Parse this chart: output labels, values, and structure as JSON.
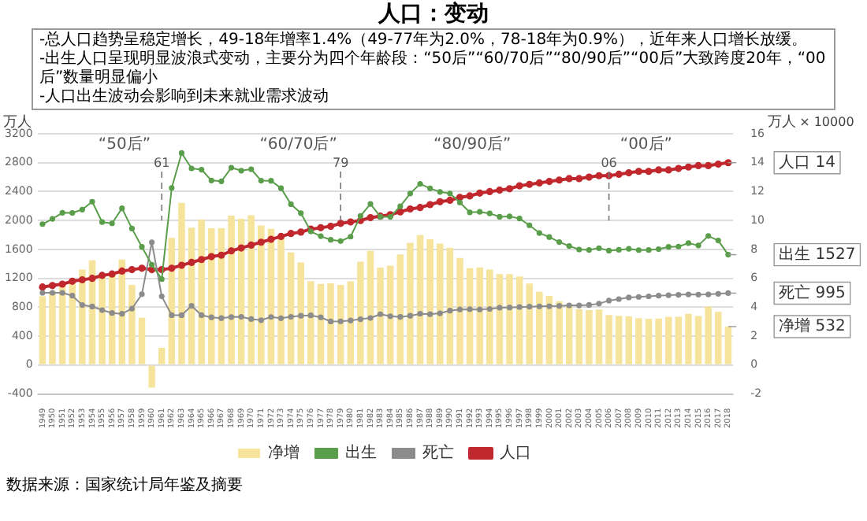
{
  "chart_data": {
    "type": "bar",
    "title": "人口：变动",
    "subtitle": "-总人口趋势呈稳定增长，49-18年增率1.4%（49-77年为2.0%，78-18年为0.9%），近年来人口增长放缓。\n-出生人口呈现明显波浪式变动，主要分为四个年龄段：“50后”“60/70后”“80/90后”“00后”大致跨度20年，“00后”数量明显偏小\n-人口出生波动会影响到未来就业需求波动",
    "ylabel": "万人",
    "y2label": "万人",
    "categories": [
      "1949",
      "1950",
      "1951",
      "1952",
      "1953",
      "1954",
      "1955",
      "1956",
      "1957",
      "1958",
      "1959",
      "1960",
      "1961",
      "1962",
      "1963",
      "1964",
      "1965",
      "1966",
      "1967",
      "1968",
      "1969",
      "1970",
      "1971",
      "1972",
      "1973",
      "1974",
      "1975",
      "1976",
      "1977",
      "1978",
      "1979",
      "1980",
      "1981",
      "1982",
      "1983",
      "1984",
      "1985",
      "1986",
      "1987",
      "1988",
      "1989",
      "1990",
      "1991",
      "1992",
      "1993",
      "1994",
      "1995",
      "1996",
      "1997",
      "1998",
      "1999",
      "2000",
      "2001",
      "2002",
      "2003",
      "2004",
      "2005",
      "2006",
      "2007",
      "2008",
      "2009",
      "2010",
      "2011",
      "2012",
      "2013",
      "2014",
      "2015",
      "2016",
      "2017",
      "2018"
    ],
    "series": [
      {
        "name": "净增",
        "color": "#f6e49c",
        "values": [
          950,
          1023,
          1107,
          1145,
          1321,
          1450,
          1218,
          1241,
          1459,
          1109,
          655,
          -311,
          239,
          1761,
          2244,
          1901,
          2014,
          1894,
          1893,
          2067,
          2023,
          2074,
          1930,
          1885,
          1799,
          1558,
          1420,
          1161,
          1123,
          1130,
          1110,
          1159,
          1430,
          1579,
          1349,
          1375,
          1530,
          1692,
          1799,
          1741,
          1680,
          1621,
          1481,
          1341,
          1351,
          1321,
          1258,
          1260,
          1226,
          1127,
          1015,
          957,
          884,
          821,
          774,
          761,
          768,
          692,
          681,
          673,
          648,
          641,
          644,
          669,
          668,
          710,
          680,
          809,
          737,
          532
        ],
        "value_labels": [
          null,
          null,
          null,
          null,
          null,
          null,
          null,
          null,
          null,
          null,
          null,
          null,
          null,
          null,
          null,
          null,
          null,
          null,
          null,
          null,
          null,
          null,
          null,
          null,
          null,
          null,
          null,
          null,
          null,
          null,
          null,
          null,
          null,
          null,
          null,
          null,
          null,
          null,
          null,
          null,
          null,
          null,
          null,
          null,
          null,
          null,
          null,
          null,
          null,
          null,
          null,
          null,
          null,
          null,
          null,
          null,
          null,
          null,
          null,
          null,
          null,
          null,
          null,
          null,
          null,
          null,
          null,
          null,
          null,
          "532"
        ]
      },
      {
        "name": "出生",
        "type": "line",
        "color": "#5a9e4b",
        "values": [
          1950,
          2023,
          2107,
          2105,
          2151,
          2260,
          1978,
          1961,
          2169,
          1889,
          1635,
          1389,
          1189,
          2451,
          2934,
          2721,
          2704,
          2554,
          2543,
          2731,
          2690,
          2710,
          2551,
          2550,
          2447,
          2226,
          2102,
          1849,
          1783,
          1733,
          1715,
          1776,
          2064,
          2230,
          2052,
          2050,
          2196,
          2374,
          2508,
          2445,
          2396,
          2374,
          2250,
          2113,
          2120,
          2098,
          2052,
          2057,
          2028,
          1934,
          1827,
          1771,
          1702,
          1647,
          1599,
          1593,
          1617,
          1584,
          1594,
          1608,
          1591,
          1592,
          1604,
          1635,
          1640,
          1687,
          1655,
          1786,
          1723,
          1527
        ],
        "value_labels": [
          null,
          null,
          null,
          null,
          null,
          null,
          null,
          null,
          null,
          null,
          null,
          null,
          null,
          null,
          null,
          null,
          null,
          null,
          null,
          null,
          null,
          null,
          null,
          null,
          null,
          null,
          null,
          null,
          null,
          null,
          null,
          null,
          null,
          null,
          null,
          null,
          null,
          null,
          null,
          null,
          null,
          null,
          null,
          null,
          null,
          null,
          null,
          null,
          null,
          null,
          null,
          null,
          null,
          null,
          null,
          null,
          null,
          null,
          null,
          null,
          null,
          null,
          null,
          null,
          null,
          null,
          null,
          null,
          null,
          "1527"
        ]
      },
      {
        "name": "死亡",
        "type": "line",
        "color": "#8c8c8c",
        "values": [
          1000,
          1000,
          1000,
          960,
          830,
          810,
          760,
          720,
          710,
          780,
          980,
          1700,
          950,
          690,
          690,
          820,
          690,
          660,
          650,
          664,
          667,
          636,
          621,
          665,
          648,
          668,
          682,
          688,
          660,
          603,
          605,
          617,
          634,
          651,
          703,
          675,
          666,
          682,
          709,
          704,
          716,
          753,
          769,
          772,
          769,
          777,
          794,
          797,
          802,
          807,
          812,
          814,
          818,
          826,
          825,
          832,
          849,
          892,
          913,
          935,
          943,
          951,
          960,
          966,
          972,
          977,
          975,
          977,
          986,
          995
        ],
        "value_labels": [
          null,
          null,
          null,
          null,
          null,
          null,
          null,
          null,
          null,
          null,
          null,
          null,
          null,
          null,
          null,
          null,
          null,
          null,
          null,
          null,
          null,
          null,
          null,
          null,
          null,
          null,
          null,
          null,
          null,
          null,
          null,
          null,
          null,
          null,
          null,
          null,
          null,
          null,
          null,
          null,
          null,
          null,
          null,
          null,
          null,
          null,
          null,
          null,
          null,
          null,
          null,
          null,
          null,
          null,
          null,
          null,
          null,
          null,
          null,
          null,
          null,
          null,
          null,
          null,
          null,
          null,
          null,
          null,
          null,
          "995"
        ]
      },
      {
        "name": "人口",
        "type": "line",
        "axis": "y2",
        "color": "#c0282d",
        "values": [
          5.4,
          5.5,
          5.6,
          5.8,
          5.9,
          6.0,
          6.2,
          6.3,
          6.5,
          6.6,
          6.7,
          6.6,
          6.6,
          6.7,
          6.9,
          7.1,
          7.3,
          7.5,
          7.6,
          7.9,
          8.1,
          8.3,
          8.5,
          8.7,
          8.9,
          9.1,
          9.2,
          9.4,
          9.5,
          9.6,
          9.8,
          9.9,
          10.0,
          10.2,
          10.3,
          10.4,
          10.6,
          10.8,
          10.9,
          11.1,
          11.3,
          11.4,
          11.6,
          11.7,
          11.9,
          12.0,
          12.1,
          12.2,
          12.4,
          12.5,
          12.6,
          12.7,
          12.8,
          12.9,
          12.9,
          13.0,
          13.1,
          13.1,
          13.2,
          13.3,
          13.4,
          13.4,
          13.5,
          13.5,
          13.6,
          13.7,
          13.8,
          13.8,
          13.9,
          14.0
        ],
        "value_labels": [
          null,
          null,
          null,
          null,
          null,
          null,
          null,
          null,
          null,
          null,
          null,
          null,
          null,
          null,
          null,
          null,
          null,
          null,
          null,
          null,
          null,
          null,
          null,
          null,
          null,
          null,
          null,
          null,
          null,
          null,
          null,
          null,
          null,
          null,
          null,
          null,
          null,
          null,
          null,
          null,
          null,
          null,
          null,
          null,
          null,
          null,
          null,
          null,
          null,
          null,
          null,
          null,
          null,
          null,
          null,
          null,
          null,
          null,
          null,
          null,
          null,
          null,
          null,
          null,
          null,
          null,
          null,
          null,
          null,
          "14"
        ]
      }
    ],
    "ylim": [
      -400,
      3200
    ],
    "yticks": [
      -400,
      0,
      400,
      800,
      1200,
      1600,
      2000,
      2400,
      2800,
      3200
    ],
    "y2lim": [
      -2,
      16
    ],
    "y2ticks": [
      -2,
      0,
      2,
      4,
      6,
      8,
      10,
      12,
      14,
      16
    ],
    "ref_lines": [
      {
        "axis": "x",
        "value": "1961",
        "label": "61",
        "line_style": "dashed"
      },
      {
        "axis": "x",
        "value": "1979",
        "label": "79",
        "line_style": "dashed"
      },
      {
        "axis": "x",
        "value": "2006",
        "label": "06",
        "line_style": "dashed"
      }
    ],
    "annotations": [
      "“50后”",
      "“60/70后”",
      "“80/90后”",
      "“00后”",
      "× 10000",
      "数据来源：国家统计局年鉴及摘要"
    ],
    "grid": "y",
    "legend": "bottom",
    "marker": "circle"
  }
}
